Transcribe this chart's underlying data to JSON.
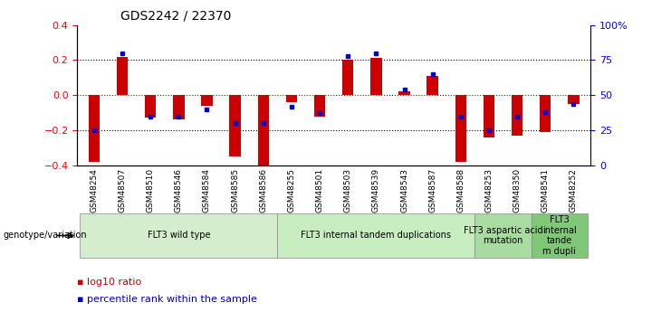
{
  "title": "GDS2242 / 22370",
  "samples": [
    "GSM48254",
    "GSM48507",
    "GSM48510",
    "GSM48546",
    "GSM48584",
    "GSM48585",
    "GSM48586",
    "GSM48255",
    "GSM48501",
    "GSM48503",
    "GSM48539",
    "GSM48543",
    "GSM48587",
    "GSM48588",
    "GSM48253",
    "GSM48350",
    "GSM48541",
    "GSM48252"
  ],
  "log10_ratio": [
    -0.38,
    0.22,
    -0.13,
    -0.14,
    -0.06,
    -0.35,
    -0.41,
    -0.04,
    -0.12,
    0.2,
    0.21,
    0.02,
    0.11,
    -0.38,
    -0.24,
    -0.23,
    -0.21,
    -0.05
  ],
  "percentile_rank": [
    25,
    80,
    35,
    35,
    40,
    30,
    30,
    42,
    37,
    78,
    80,
    54,
    65,
    35,
    25,
    35,
    38,
    44
  ],
  "ylim_left": [
    -0.4,
    0.4
  ],
  "ylim_right": [
    0,
    100
  ],
  "group_configs": [
    {
      "start": 0,
      "end": 6,
      "label": "FLT3 wild type",
      "color": "#d4edcc"
    },
    {
      "start": 7,
      "end": 13,
      "label": "FLT3 internal tandem duplications",
      "color": "#c8edc0"
    },
    {
      "start": 14,
      "end": 15,
      "label": "FLT3 aspartic acid\nmutation",
      "color": "#a8dca0"
    },
    {
      "start": 16,
      "end": 17,
      "label": "FLT3\ninternal\ntande\nm dupli",
      "color": "#80c878"
    }
  ],
  "bar_color_red": "#cc0000",
  "bar_color_blue": "#0000cc",
  "zero_line_color": "#cc0000",
  "bg_color": "#ffffff"
}
